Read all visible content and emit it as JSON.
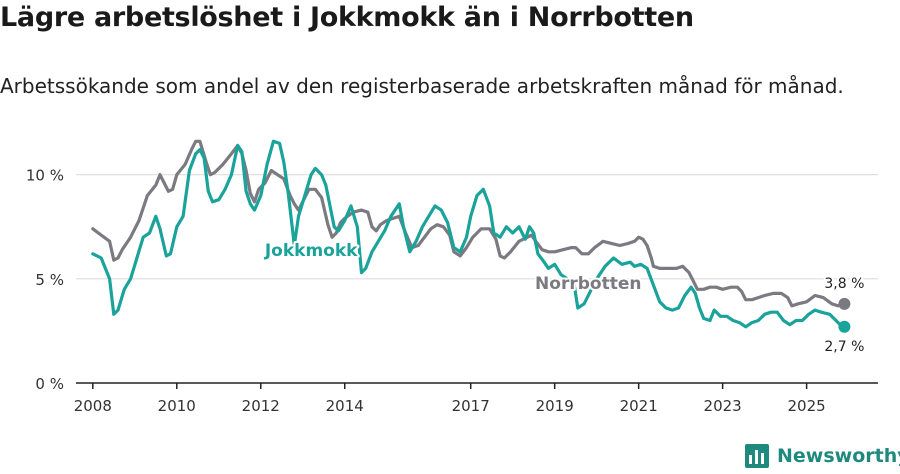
{
  "title": "Lägre arbetslöshet i Jokkmokk än i Norrbotten",
  "subtitle": "Arbetssökande som andel av den registerbaserade arbetskraften månad för månad.",
  "brand": "Newsworthy",
  "colors": {
    "jokkmokk": "#1aa39a",
    "norrbotten": "#7a7a80",
    "grid": "#dddddd",
    "axis": "#222222",
    "brand": "#1e8a7e"
  },
  "chart_data": {
    "type": "line",
    "title": "Lägre arbetslöshet i Jokkmokk än i Norrbotten",
    "xlabel": "",
    "ylabel": "",
    "xlim": [
      2007.6,
      2026.7
    ],
    "ylim": [
      0,
      12
    ],
    "grid": true,
    "x_ticks": [
      2008,
      2010,
      2012,
      2014,
      2017,
      2019,
      2021,
      2023,
      2025
    ],
    "y_ticks": [
      {
        "value": 0,
        "label": "0 %"
      },
      {
        "value": 5,
        "label": "5 %"
      },
      {
        "value": 10,
        "label": "10 %"
      }
    ],
    "series": [
      {
        "name": "Norrbotten",
        "inline_label": "Norrbotten",
        "color": "#7a7a80",
        "end_label": "3,8 %",
        "points": [
          [
            2008.0,
            7.4
          ],
          [
            2008.2,
            7.1
          ],
          [
            2008.4,
            6.8
          ],
          [
            2008.5,
            5.9
          ],
          [
            2008.6,
            6.0
          ],
          [
            2008.7,
            6.4
          ],
          [
            2008.9,
            7.0
          ],
          [
            2009.1,
            7.8
          ],
          [
            2009.3,
            9.0
          ],
          [
            2009.5,
            9.5
          ],
          [
            2009.6,
            10.0
          ],
          [
            2009.7,
            9.6
          ],
          [
            2009.8,
            9.2
          ],
          [
            2009.9,
            9.3
          ],
          [
            2010.0,
            10.0
          ],
          [
            2010.2,
            10.5
          ],
          [
            2010.35,
            11.2
          ],
          [
            2010.45,
            11.6
          ],
          [
            2010.55,
            11.6
          ],
          [
            2010.7,
            10.6
          ],
          [
            2010.8,
            10.0
          ],
          [
            2010.9,
            10.1
          ],
          [
            2011.1,
            10.5
          ],
          [
            2011.3,
            11.0
          ],
          [
            2011.45,
            11.4
          ],
          [
            2011.55,
            11.0
          ],
          [
            2011.65,
            10.2
          ],
          [
            2011.75,
            9.1
          ],
          [
            2011.85,
            8.7
          ],
          [
            2011.95,
            9.3
          ],
          [
            2012.1,
            9.6
          ],
          [
            2012.25,
            10.2
          ],
          [
            2012.4,
            10.0
          ],
          [
            2012.55,
            9.8
          ],
          [
            2012.7,
            9.0
          ],
          [
            2012.8,
            8.6
          ],
          [
            2012.9,
            8.3
          ],
          [
            2013.0,
            8.7
          ],
          [
            2013.15,
            9.3
          ],
          [
            2013.3,
            9.3
          ],
          [
            2013.45,
            8.9
          ],
          [
            2013.6,
            7.6
          ],
          [
            2013.7,
            7.0
          ],
          [
            2013.8,
            7.2
          ],
          [
            2013.9,
            7.7
          ],
          [
            2014.0,
            7.9
          ],
          [
            2014.2,
            8.2
          ],
          [
            2014.4,
            8.3
          ],
          [
            2014.55,
            8.2
          ],
          [
            2014.65,
            7.5
          ],
          [
            2014.75,
            7.3
          ],
          [
            2014.85,
            7.6
          ],
          [
            2015.0,
            7.8
          ],
          [
            2015.15,
            7.9
          ],
          [
            2015.3,
            8.0
          ],
          [
            2015.45,
            7.2
          ],
          [
            2015.6,
            6.5
          ],
          [
            2015.75,
            6.6
          ],
          [
            2015.9,
            7.0
          ],
          [
            2016.05,
            7.4
          ],
          [
            2016.2,
            7.6
          ],
          [
            2016.35,
            7.5
          ],
          [
            2016.5,
            7.1
          ],
          [
            2016.6,
            6.3
          ],
          [
            2016.75,
            6.1
          ],
          [
            2016.9,
            6.5
          ],
          [
            2017.05,
            7.0
          ],
          [
            2017.25,
            7.4
          ],
          [
            2017.45,
            7.4
          ],
          [
            2017.6,
            6.9
          ],
          [
            2017.7,
            6.1
          ],
          [
            2017.8,
            6.0
          ],
          [
            2017.95,
            6.3
          ],
          [
            2018.15,
            6.8
          ],
          [
            2018.35,
            7.0
          ],
          [
            2018.45,
            7.1
          ],
          [
            2018.55,
            6.8
          ],
          [
            2018.7,
            6.4
          ],
          [
            2018.85,
            6.3
          ],
          [
            2019.0,
            6.3
          ],
          [
            2019.2,
            6.4
          ],
          [
            2019.4,
            6.5
          ],
          [
            2019.5,
            6.5
          ],
          [
            2019.65,
            6.2
          ],
          [
            2019.8,
            6.2
          ],
          [
            2019.95,
            6.5
          ],
          [
            2020.15,
            6.8
          ],
          [
            2020.35,
            6.7
          ],
          [
            2020.55,
            6.6
          ],
          [
            2020.75,
            6.7
          ],
          [
            2020.9,
            6.8
          ],
          [
            2021.0,
            7.0
          ],
          [
            2021.1,
            6.9
          ],
          [
            2021.2,
            6.6
          ],
          [
            2021.3,
            6.0
          ],
          [
            2021.35,
            5.6
          ],
          [
            2021.5,
            5.5
          ],
          [
            2021.7,
            5.5
          ],
          [
            2021.9,
            5.5
          ],
          [
            2022.05,
            5.6
          ],
          [
            2022.2,
            5.3
          ],
          [
            2022.3,
            4.9
          ],
          [
            2022.4,
            4.5
          ],
          [
            2022.55,
            4.5
          ],
          [
            2022.7,
            4.6
          ],
          [
            2022.85,
            4.6
          ],
          [
            2023.0,
            4.5
          ],
          [
            2023.2,
            4.6
          ],
          [
            2023.35,
            4.6
          ],
          [
            2023.45,
            4.4
          ],
          [
            2023.55,
            4.0
          ],
          [
            2023.7,
            4.0
          ],
          [
            2023.85,
            4.1
          ],
          [
            2024.0,
            4.2
          ],
          [
            2024.2,
            4.3
          ],
          [
            2024.4,
            4.3
          ],
          [
            2024.55,
            4.1
          ],
          [
            2024.65,
            3.7
          ],
          [
            2024.8,
            3.8
          ],
          [
            2025.0,
            3.9
          ],
          [
            2025.2,
            4.2
          ],
          [
            2025.4,
            4.1
          ],
          [
            2025.6,
            3.8
          ],
          [
            2025.75,
            3.7
          ],
          [
            2025.9,
            3.8
          ]
        ]
      },
      {
        "name": "Jokkmokk",
        "inline_label": "Jokkmokk",
        "color": "#1aa39a",
        "end_label": "2,7 %",
        "points": [
          [
            2008.0,
            6.2
          ],
          [
            2008.2,
            6.0
          ],
          [
            2008.4,
            5.0
          ],
          [
            2008.5,
            3.3
          ],
          [
            2008.6,
            3.5
          ],
          [
            2008.75,
            4.5
          ],
          [
            2008.9,
            5.0
          ],
          [
            2009.05,
            6.0
          ],
          [
            2009.2,
            7.0
          ],
          [
            2009.35,
            7.2
          ],
          [
            2009.5,
            8.0
          ],
          [
            2009.6,
            7.4
          ],
          [
            2009.75,
            6.1
          ],
          [
            2009.85,
            6.2
          ],
          [
            2010.0,
            7.5
          ],
          [
            2010.15,
            8.0
          ],
          [
            2010.3,
            10.2
          ],
          [
            2010.45,
            11.0
          ],
          [
            2010.55,
            11.2
          ],
          [
            2010.65,
            10.8
          ],
          [
            2010.75,
            9.2
          ],
          [
            2010.85,
            8.7
          ],
          [
            2011.0,
            8.8
          ],
          [
            2011.15,
            9.3
          ],
          [
            2011.3,
            10.0
          ],
          [
            2011.45,
            11.4
          ],
          [
            2011.55,
            11.1
          ],
          [
            2011.65,
            9.2
          ],
          [
            2011.75,
            8.6
          ],
          [
            2011.85,
            8.3
          ],
          [
            2012.0,
            9.0
          ],
          [
            2012.15,
            10.5
          ],
          [
            2012.3,
            11.6
          ],
          [
            2012.45,
            11.5
          ],
          [
            2012.55,
            10.6
          ],
          [
            2012.65,
            9.2
          ],
          [
            2012.75,
            7.5
          ],
          [
            2012.8,
            6.6
          ],
          [
            2012.9,
            8.0
          ],
          [
            2013.05,
            9.0
          ],
          [
            2013.2,
            10.0
          ],
          [
            2013.3,
            10.3
          ],
          [
            2013.45,
            10.0
          ],
          [
            2013.55,
            9.5
          ],
          [
            2013.65,
            8.5
          ],
          [
            2013.75,
            7.5
          ],
          [
            2013.85,
            7.3
          ],
          [
            2014.0,
            7.8
          ],
          [
            2014.15,
            8.5
          ],
          [
            2014.3,
            7.5
          ],
          [
            2014.4,
            5.3
          ],
          [
            2014.5,
            5.5
          ],
          [
            2014.65,
            6.3
          ],
          [
            2014.8,
            6.8
          ],
          [
            2014.95,
            7.3
          ],
          [
            2015.1,
            8.0
          ],
          [
            2015.3,
            8.6
          ],
          [
            2015.4,
            7.5
          ],
          [
            2015.55,
            6.3
          ],
          [
            2015.7,
            6.8
          ],
          [
            2015.85,
            7.5
          ],
          [
            2016.0,
            8.0
          ],
          [
            2016.15,
            8.5
          ],
          [
            2016.3,
            8.3
          ],
          [
            2016.45,
            7.7
          ],
          [
            2016.6,
            6.5
          ],
          [
            2016.75,
            6.3
          ],
          [
            2016.9,
            7.0
          ],
          [
            2017.0,
            8.0
          ],
          [
            2017.15,
            9.0
          ],
          [
            2017.3,
            9.3
          ],
          [
            2017.45,
            8.5
          ],
          [
            2017.55,
            7.2
          ],
          [
            2017.7,
            7.0
          ],
          [
            2017.85,
            7.5
          ],
          [
            2018.0,
            7.2
          ],
          [
            2018.15,
            7.5
          ],
          [
            2018.3,
            6.9
          ],
          [
            2018.4,
            7.5
          ],
          [
            2018.5,
            7.2
          ],
          [
            2018.6,
            6.2
          ],
          [
            2018.75,
            5.8
          ],
          [
            2018.85,
            5.5
          ],
          [
            2019.0,
            5.7
          ],
          [
            2019.15,
            5.2
          ],
          [
            2019.3,
            5.0
          ],
          [
            2019.45,
            4.9
          ],
          [
            2019.55,
            3.6
          ],
          [
            2019.7,
            3.8
          ],
          [
            2019.85,
            4.4
          ],
          [
            2020.0,
            5.0
          ],
          [
            2020.2,
            5.6
          ],
          [
            2020.4,
            6.0
          ],
          [
            2020.6,
            5.7
          ],
          [
            2020.8,
            5.8
          ],
          [
            2020.9,
            5.6
          ],
          [
            2021.05,
            5.7
          ],
          [
            2021.2,
            5.5
          ],
          [
            2021.35,
            4.7
          ],
          [
            2021.5,
            3.9
          ],
          [
            2021.65,
            3.6
          ],
          [
            2021.8,
            3.5
          ],
          [
            2021.95,
            3.6
          ],
          [
            2022.1,
            4.2
          ],
          [
            2022.25,
            4.6
          ],
          [
            2022.35,
            4.3
          ],
          [
            2022.45,
            3.6
          ],
          [
            2022.55,
            3.1
          ],
          [
            2022.7,
            3.0
          ],
          [
            2022.8,
            3.5
          ],
          [
            2022.95,
            3.2
          ],
          [
            2023.1,
            3.2
          ],
          [
            2023.25,
            3.0
          ],
          [
            2023.4,
            2.9
          ],
          [
            2023.55,
            2.7
          ],
          [
            2023.7,
            2.9
          ],
          [
            2023.85,
            3.0
          ],
          [
            2024.0,
            3.3
          ],
          [
            2024.15,
            3.4
          ],
          [
            2024.3,
            3.4
          ],
          [
            2024.45,
            3.0
          ],
          [
            2024.6,
            2.8
          ],
          [
            2024.75,
            3.0
          ],
          [
            2024.9,
            3.0
          ],
          [
            2025.05,
            3.3
          ],
          [
            2025.2,
            3.5
          ],
          [
            2025.35,
            3.4
          ],
          [
            2025.55,
            3.3
          ],
          [
            2025.7,
            3.0
          ],
          [
            2025.8,
            2.8
          ],
          [
            2025.9,
            2.7
          ]
        ]
      }
    ]
  }
}
